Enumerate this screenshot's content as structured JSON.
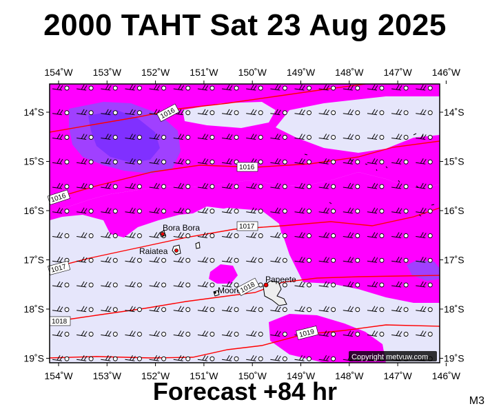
{
  "title": "2000 TAHT Sat 23 Aug 2025",
  "footer": "Forecast +84 hr",
  "model": "M3",
  "copyright": "Copyright metvuw.com",
  "colors": {
    "background": "#e6e6fb",
    "magenta": "#ff00ff",
    "purple": "#a040ff",
    "violet": "#8030ff",
    "isobar": "#ff0000"
  },
  "lon_labels": [
    "154˚W",
    "153˚W",
    "152˚W",
    "151˚W",
    "150˚W",
    "149˚W",
    "148˚W",
    "147˚W",
    "146˚W"
  ],
  "lat_labels": [
    "14˚S",
    "15˚S",
    "16˚S",
    "17˚S",
    "18˚S",
    "19˚S"
  ],
  "places": [
    {
      "name": "Bora Bora"
    },
    {
      "name": "Raiatea"
    },
    {
      "name": "Moorea"
    },
    {
      "name": "Papeete"
    }
  ],
  "isobars": [
    {
      "label": "1016"
    },
    {
      "label": "1016"
    },
    {
      "label": "1016"
    },
    {
      "label": "1017"
    },
    {
      "label": "1017"
    },
    {
      "label": "1018"
    },
    {
      "label": "1018"
    },
    {
      "label": "1019"
    }
  ]
}
